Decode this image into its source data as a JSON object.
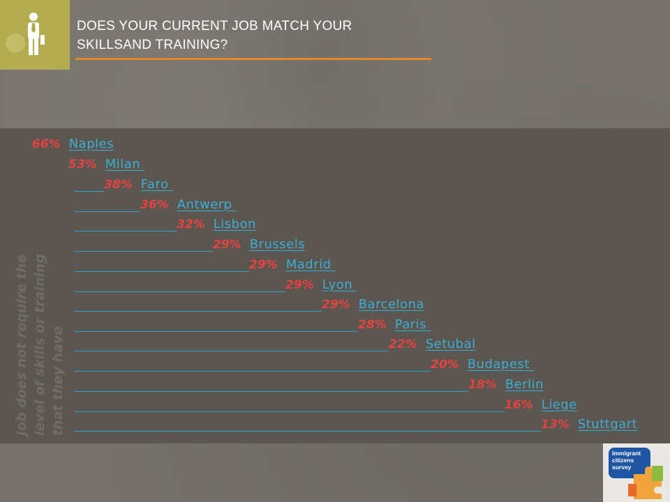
{
  "header": {
    "title_line1": "DOES YOUR CURRENT JOB MATCH YOUR",
    "title_line2": "SKILLSAND TRAINING?",
    "icon": "person-icon"
  },
  "side_label": {
    "line1": "Job does not require the",
    "line2": "level of skills or training",
    "line3": "that they have"
  },
  "rows": [
    {
      "percent": "66%",
      "city": "Naples"
    },
    {
      "percent": "53%",
      "city": "Milan "
    },
    {
      "percent": "38%",
      "city": "Faro "
    },
    {
      "percent": "36%",
      "city": "Antwerp "
    },
    {
      "percent": "32%",
      "city": "Lisbon"
    },
    {
      "percent": "29%",
      "city": "Brussels"
    },
    {
      "percent": "29%",
      "city": "Madrid "
    },
    {
      "percent": "29%",
      "city": "Lyon "
    },
    {
      "percent": "29%",
      "city": "Barcelona"
    },
    {
      "percent": "28%",
      "city": "Paris "
    },
    {
      "percent": "22%",
      "city": "Setubal"
    },
    {
      "percent": "20%",
      "city": "Budapest "
    },
    {
      "percent": "18%",
      "city": "Berlin"
    },
    {
      "percent": "16%",
      "city": "Liege"
    },
    {
      "percent": "13%",
      "city": "Stuttgart"
    }
  ],
  "logo": {
    "line1": "Immigrant",
    "line2": "citizens",
    "line3": "survey"
  },
  "colors": {
    "percent": "#e8413f",
    "city_link": "#3aaed6",
    "title_rule": "#e8862a",
    "icon_box": "#b2ab4f"
  }
}
